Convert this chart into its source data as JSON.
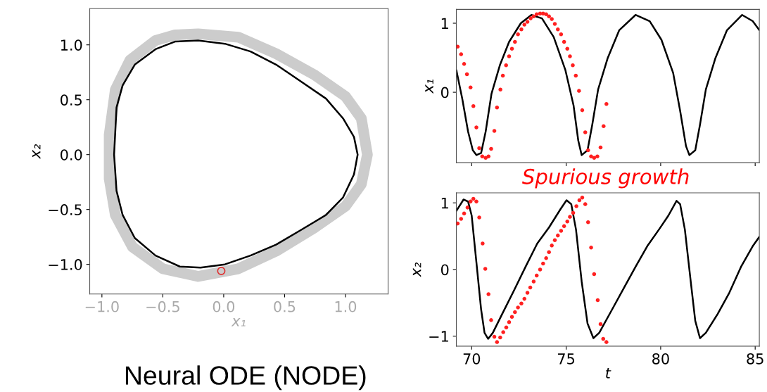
{
  "chart_data": [
    {
      "type": "scatter",
      "xlabel": "x₁",
      "ylabel": "x₂",
      "xlim": [
        -1.1,
        1.35
      ],
      "ylim": [
        -1.27,
        1.33
      ],
      "xticks": [
        {
          "value": -1,
          "label": "−1.0"
        },
        {
          "value": -0.5,
          "label": "−0.5"
        },
        {
          "value": 0,
          "label": "0.0"
        },
        {
          "value": 0.5,
          "label": "0.5"
        },
        {
          "value": 1,
          "label": "1.0"
        }
      ],
      "yticks": [
        {
          "value": -1,
          "label": "−1.0"
        },
        {
          "value": -0.5,
          "label": "−0.5"
        },
        {
          "value": 0,
          "label": "0.0"
        },
        {
          "value": 0.5,
          "label": "0.5"
        },
        {
          "value": 1,
          "label": "1.0"
        }
      ],
      "grid": false,
      "legend": false,
      "annotations": [
        "Neural ODE (NODE)"
      ],
      "series": [
        {
          "type": "line",
          "color": "#cccccc",
          "x": [
            -0.94,
            -0.94,
            -0.89,
            -0.77,
            -0.56,
            -0.4,
            -0.21,
            0.12,
            0.43,
            0.74,
            1.0,
            1.13,
            1.18,
            null,
            -0.94,
            -0.89,
            -0.75,
            -0.5,
            -0.21,
            0.12,
            0.43,
            0.74,
            1.0,
            1.13,
            1.18
          ],
          "values": [
            -0.22,
            0.18,
            0.59,
            0.86,
            1.04,
            1.09,
            1.1,
            1.07,
            0.92,
            0.73,
            0.53,
            0.33,
            0,
            null,
            -0.22,
            -0.55,
            -0.84,
            -1.04,
            -1.11,
            -1.04,
            -0.88,
            -0.67,
            -0.47,
            -0.27,
            0
          ]
        },
        {
          "type": "line",
          "color": "#000000",
          "x": [
            -0.9,
            -0.88,
            -0.83,
            -0.73,
            -0.56,
            -0.4,
            -0.21,
            0.01,
            0.22,
            0.43,
            0.63,
            0.84,
            0.98,
            1.07,
            1.1,
            null,
            -0.9,
            -0.88,
            -0.83,
            -0.73,
            -0.56,
            -0.36,
            -0.19,
            0.01,
            0.22,
            0.43,
            0.63,
            0.84,
            0.98,
            1.07,
            1.1
          ],
          "values": [
            0,
            0.43,
            0.63,
            0.82,
            0.96,
            1.03,
            1.04,
            1.01,
            0.94,
            0.82,
            0.67,
            0.51,
            0.33,
            0.16,
            0,
            null,
            0,
            -0.33,
            -0.55,
            -0.76,
            -0.92,
            -1.02,
            -1.03,
            -1.0,
            -0.92,
            -0.82,
            -0.69,
            -0.55,
            -0.39,
            -0.18,
            0
          ]
        },
        {
          "color": "#e03030",
          "marker": "circle",
          "x": [
            -0.02
          ],
          "values": [
            -1.06
          ]
        }
      ]
    },
    {
      "type": "line",
      "ylabel": "x₁",
      "xlim": [
        69.19,
        85.22
      ],
      "ylim": [
        -1.02,
        1.2
      ],
      "xticks": [
        70,
        75,
        80,
        85
      ],
      "yticks": [
        0,
        1
      ],
      "tick_labels": "y",
      "grid": false,
      "legend": false,
      "annotations": [
        "Spurious growth"
      ],
      "series": [
        {
          "color": "#000000",
          "x": [
            69.19,
            69.5,
            69.81,
            70.06,
            70.25,
            70.5,
            70.74,
            71.05,
            71.49,
            71.98,
            72.6,
            73.16,
            73.72,
            74.34,
            74.96,
            75.39,
            75.64,
            75.82,
            76.13,
            76.38,
            76.69,
            77.19,
            77.81,
            78.67,
            79.42,
            80.04,
            80.66,
            81.03,
            81.34,
            81.52,
            81.83,
            82.08,
            82.39,
            82.89,
            83.51,
            84.31,
            84.87,
            85.22
          ],
          "values": [
            0.32,
            -0.09,
            -0.57,
            -0.84,
            -0.91,
            -0.88,
            -0.57,
            -0.02,
            0.39,
            0.73,
            1.0,
            1.12,
            1.07,
            0.8,
            0.32,
            -0.19,
            -0.7,
            -0.91,
            -0.84,
            -0.47,
            0.04,
            0.49,
            0.9,
            1.12,
            1.03,
            0.76,
            0.28,
            -0.27,
            -0.78,
            -0.91,
            -0.84,
            -0.47,
            0.04,
            0.49,
            0.9,
            1.12,
            1.03,
            0.9
          ]
        },
        {
          "type": "scatter",
          "color": "#ff2020",
          "marker": "circle",
          "x": [
            69.26,
            69.44,
            69.6,
            69.75,
            69.94,
            70.09,
            70.25,
            70.4,
            70.56,
            70.74,
            70.89,
            71.03,
            71.2,
            71.34,
            71.52,
            71.65,
            71.82,
            71.98,
            72.13,
            72.29,
            72.45,
            72.63,
            72.79,
            72.95,
            73.12,
            73.28,
            73.44,
            73.62,
            73.78,
            73.94,
            74.09,
            74.24,
            74.4,
            74.56,
            74.73,
            74.89,
            75.06,
            75.2,
            75.35,
            75.51,
            75.68,
            75.85,
            76.01,
            76.16,
            76.32,
            76.48,
            76.65,
            76.82,
            76.98,
            77.13
          ],
          "values": [
            0.66,
            0.55,
            0.41,
            0.26,
            0.07,
            -0.2,
            -0.51,
            -0.81,
            -0.93,
            -0.95,
            -0.93,
            -0.82,
            -0.56,
            -0.22,
            0.04,
            0.24,
            0.39,
            0.52,
            0.63,
            0.73,
            0.84,
            0.91,
            0.98,
            1.02,
            1.07,
            1.1,
            1.13,
            1.14,
            1.14,
            1.13,
            1.1,
            1.06,
            0.99,
            0.91,
            0.84,
            0.73,
            0.63,
            0.52,
            0.39,
            0.24,
            0.02,
            -0.26,
            -0.58,
            -0.84,
            -0.93,
            -0.95,
            -0.93,
            -0.8,
            -0.49,
            -0.17
          ]
        }
      ]
    },
    {
      "type": "line",
      "xlabel": "t",
      "ylabel": "x₂",
      "xlim": [
        69.19,
        85.22
      ],
      "ylim": [
        -1.15,
        1.15
      ],
      "xticks": [
        70,
        75,
        80,
        85
      ],
      "yticks": [
        {
          "value": -1,
          "label": "−1"
        },
        0,
        1
      ],
      "grid": false,
      "legend": false,
      "series": [
        {
          "color": "#000000",
          "x": [
            69.19,
            69.57,
            69.81,
            70.0,
            70.25,
            70.5,
            70.68,
            70.87,
            71.12,
            71.61,
            72.23,
            72.85,
            73.47,
            74.09,
            74.71,
            75.02,
            75.27,
            75.52,
            75.82,
            76.13,
            76.44,
            76.75,
            77.43,
            78.05,
            78.67,
            79.29,
            79.91,
            80.41,
            80.84,
            81.03,
            81.28,
            81.59,
            81.83,
            82.08,
            82.39,
            83.01,
            83.63,
            84.25,
            84.87,
            85.22
          ],
          "values": [
            0.88,
            1.05,
            1.02,
            0.81,
            0.11,
            -0.6,
            -0.95,
            -1.04,
            -0.95,
            -0.67,
            -0.32,
            0.04,
            0.39,
            0.63,
            0.91,
            1.04,
            0.98,
            0.6,
            -0.18,
            -0.81,
            -1.03,
            -0.95,
            -0.6,
            -0.28,
            0.04,
            0.35,
            0.6,
            0.81,
            1.03,
            0.98,
            0.6,
            -0.18,
            -0.77,
            -1.03,
            -0.95,
            -0.67,
            -0.35,
            0.04,
            0.35,
            0.49
          ]
        },
        {
          "type": "scatter",
          "color": "#ff2020",
          "marker": "circle",
          "x": [
            69.26,
            69.44,
            69.6,
            69.78,
            69.94,
            70.09,
            70.25,
            70.4,
            70.58,
            70.72,
            70.89,
            71.03,
            71.2,
            71.34,
            71.51,
            71.67,
            71.83,
            71.98,
            72.13,
            72.29,
            72.45,
            72.63,
            72.79,
            72.95,
            73.1,
            73.28,
            73.44,
            73.62,
            73.78,
            73.94,
            74.09,
            74.24,
            74.4,
            74.56,
            74.73,
            74.89,
            75.06,
            75.2,
            75.37,
            75.54,
            75.7,
            75.85,
            76.01,
            76.16,
            76.32,
            76.48,
            76.67,
            76.82,
            76.96,
            77.13
          ],
          "values": [
            0.69,
            0.76,
            0.84,
            0.93,
            1.02,
            1.06,
            1.02,
            0.78,
            0.39,
            0.01,
            -0.37,
            -0.76,
            -1.01,
            -1.09,
            -1.02,
            -0.94,
            -0.87,
            -0.79,
            -0.71,
            -0.64,
            -0.57,
            -0.51,
            -0.44,
            -0.35,
            -0.27,
            -0.18,
            -0.09,
            0.0,
            0.09,
            0.17,
            0.26,
            0.36,
            0.44,
            0.51,
            0.58,
            0.65,
            0.72,
            0.79,
            0.85,
            0.95,
            1.04,
            1.08,
            0.98,
            0.71,
            0.33,
            -0.07,
            -0.46,
            -0.82,
            -1.04,
            -1.09
          ]
        }
      ]
    }
  ]
}
